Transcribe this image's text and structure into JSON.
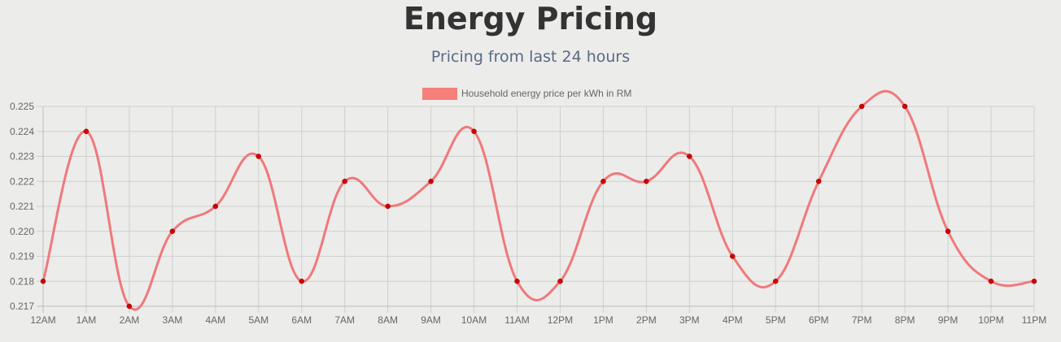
{
  "header": {
    "title": "Energy Pricing",
    "subtitle": "Pricing from last 24 hours"
  },
  "colors": {
    "line": "#f0797a",
    "legend_box": "#f77f7a",
    "point": "#d10000",
    "grid": "#cfcfcf",
    "background": "#ececeb"
  },
  "chart_data": {
    "type": "line",
    "title": "Energy Pricing",
    "subtitle": "Pricing from last 24 hours",
    "categories": [
      "12AM",
      "1AM",
      "2AM",
      "3AM",
      "4AM",
      "5AM",
      "6AM",
      "7AM",
      "8AM",
      "9AM",
      "10AM",
      "11AM",
      "12PM",
      "1PM",
      "2PM",
      "3PM",
      "4PM",
      "5PM",
      "6PM",
      "7PM",
      "8PM",
      "9PM",
      "10PM",
      "11PM"
    ],
    "series": [
      {
        "name": "Household energy price per kWh in RM",
        "values": [
          0.218,
          0.224,
          0.217,
          0.22,
          0.221,
          0.223,
          0.218,
          0.222,
          0.221,
          0.222,
          0.224,
          0.218,
          0.218,
          0.222,
          0.222,
          0.223,
          0.219,
          0.218,
          0.222,
          0.225,
          0.225,
          0.22,
          0.218,
          0.218
        ]
      }
    ],
    "y_ticks": [
      "0.217",
      "0.218",
      "0.219",
      "0.220",
      "0.221",
      "0.222",
      "0.223",
      "0.224",
      "0.225"
    ],
    "ylim": [
      0.217,
      0.225
    ],
    "grid": true,
    "legend_position": "top",
    "curve": "smooth"
  }
}
